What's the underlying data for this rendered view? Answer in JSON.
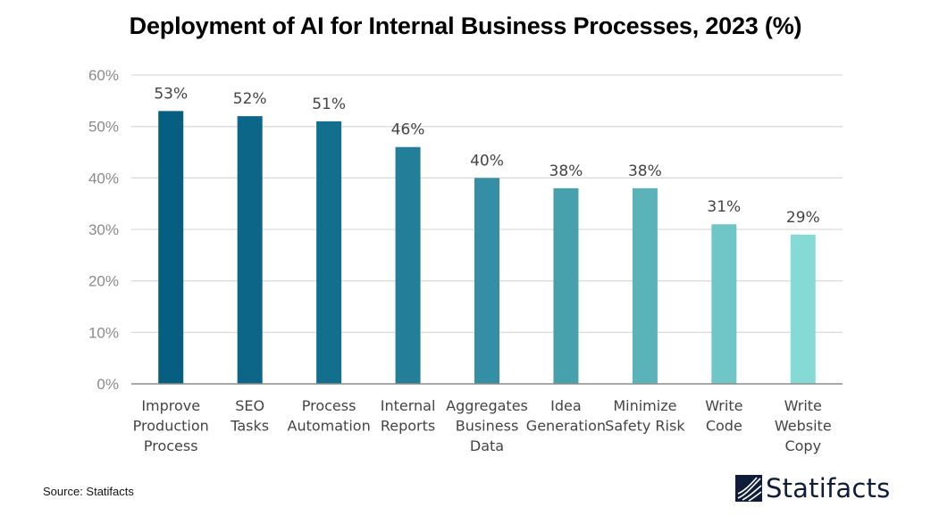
{
  "chart_data": {
    "type": "bar",
    "title": "Deployment of AI for Internal Business Processes, 2023 (%)",
    "xlabel": "",
    "ylabel": "",
    "ylim": [
      0,
      60
    ],
    "yticks": [
      "0%",
      "10%",
      "20%",
      "30%",
      "40%",
      "50%",
      "60%"
    ],
    "ytick_values": [
      0,
      10,
      20,
      30,
      40,
      50,
      60
    ],
    "grid": true,
    "categories": [
      [
        "Improve",
        "Production",
        "Process"
      ],
      [
        "SEO",
        "Tasks"
      ],
      [
        "Process",
        "Automation"
      ],
      [
        "Internal",
        "Reports"
      ],
      [
        "Aggregates",
        "Business",
        "Data"
      ],
      [
        "Idea",
        "Generation"
      ],
      [
        "Minimize",
        "Safety Risk"
      ],
      [
        "Write",
        "Code"
      ],
      [
        "Write",
        "Website",
        "Copy"
      ]
    ],
    "values": [
      53,
      52,
      51,
      46,
      40,
      38,
      38,
      31,
      29
    ],
    "data_labels": [
      "53%",
      "52%",
      "51%",
      "46%",
      "40%",
      "38%",
      "38%",
      "31%",
      "29%"
    ],
    "colors": [
      "#065e80",
      "#0b6688",
      "#136f8e",
      "#237f98",
      "#348fa5",
      "#46a1ad",
      "#5ab3b8",
      "#70c6c6",
      "#86dad6"
    ]
  },
  "footer": {
    "source": "Source: Statifacts",
    "brand": "Statifacts",
    "brand_color": "#0f1d3a"
  }
}
